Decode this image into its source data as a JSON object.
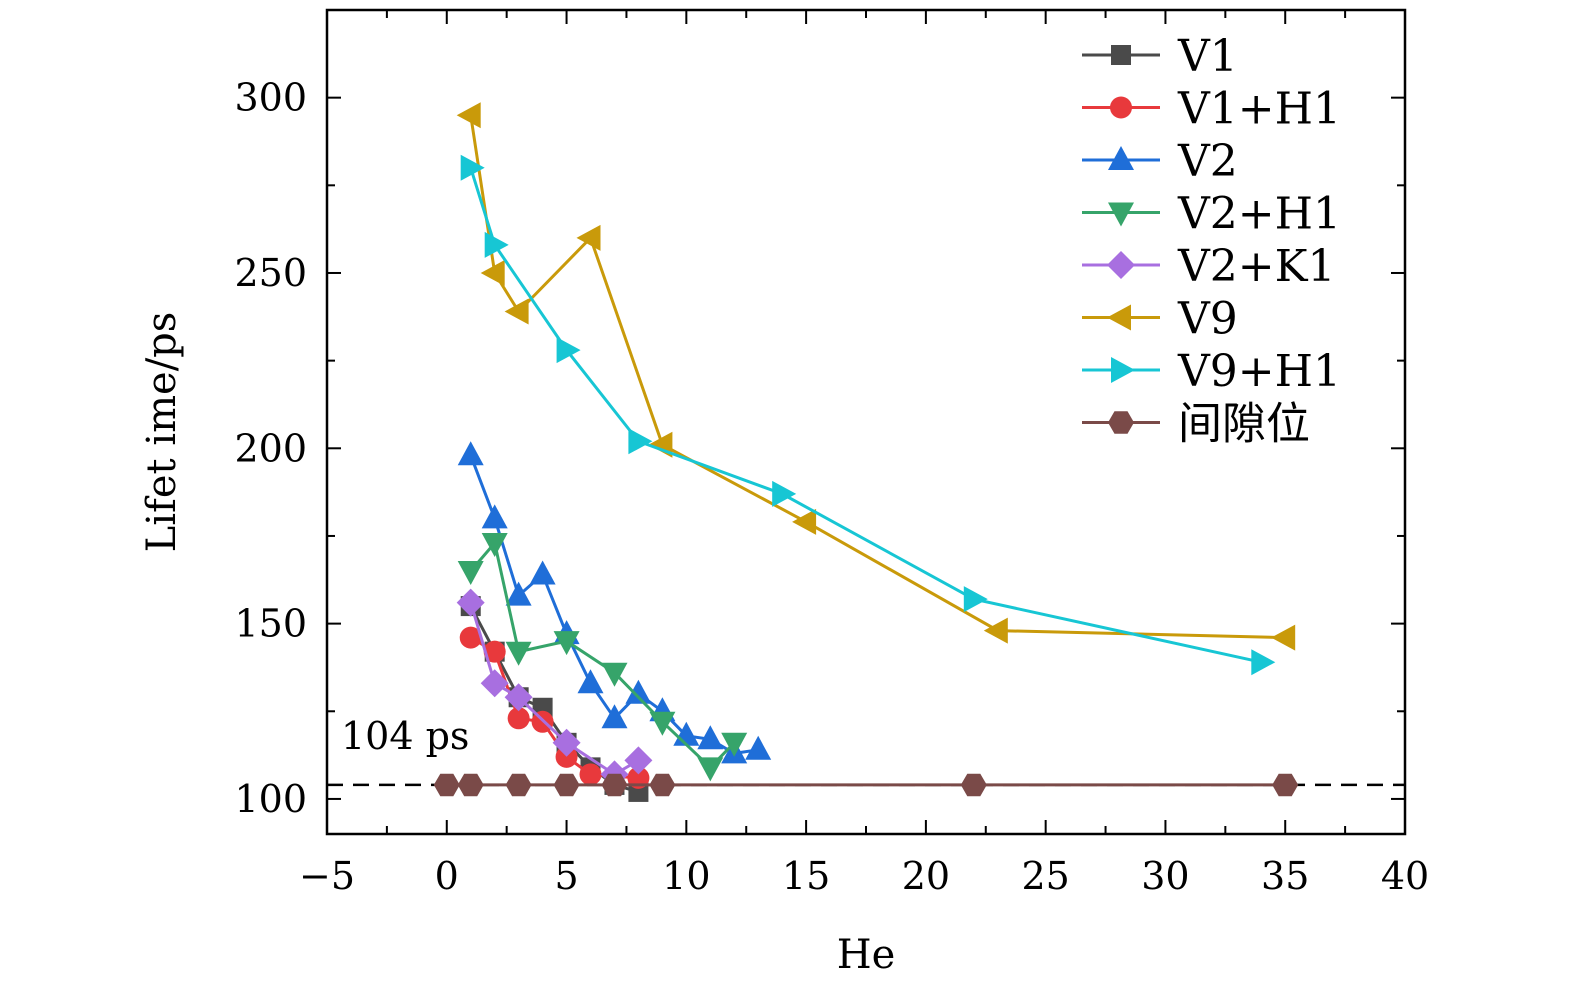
{
  "chart_data": {
    "type": "line",
    "xlabel": "He",
    "ylabel": "Lifet ime/ps",
    "xlim": [
      -5,
      40
    ],
    "ylim": [
      90,
      325
    ],
    "xticks": [
      -5,
      0,
      5,
      10,
      15,
      20,
      25,
      30,
      35,
      40
    ],
    "xtick_labels": [
      "−5",
      "0",
      "5",
      "10",
      "15",
      "20",
      "25",
      "30",
      "35",
      "40"
    ],
    "yticks": [
      100,
      150,
      200,
      250,
      300
    ],
    "ytick_labels": [
      "100",
      "150",
      "200",
      "250",
      "300"
    ],
    "grid": false,
    "legend_position": "top-right",
    "reference_line": {
      "y": 104,
      "style": "dashed",
      "label": "104 ps"
    },
    "series": [
      {
        "name": "V1",
        "color": "#4a4a4a",
        "marker": "square",
        "x": [
          1,
          2,
          3,
          4,
          5,
          6,
          7,
          8
        ],
        "y": [
          155,
          142,
          129,
          126,
          116,
          109,
          104,
          102
        ]
      },
      {
        "name": "V1+H1",
        "color": "#e8393c",
        "marker": "circle",
        "x": [
          1,
          2,
          3,
          4,
          5,
          6,
          8
        ],
        "y": [
          146,
          142,
          123,
          122,
          112,
          107,
          106
        ]
      },
      {
        "name": "V2",
        "color": "#1f6ed8",
        "marker": "triangle-up",
        "x": [
          1,
          2,
          3,
          4,
          5,
          6,
          7,
          8,
          9,
          10,
          11,
          12,
          13
        ],
        "y": [
          198,
          180,
          158,
          164,
          147,
          133,
          123,
          130,
          125,
          118,
          117,
          113,
          114
        ]
      },
      {
        "name": "V2+H1",
        "color": "#36a46a",
        "marker": "triangle-down",
        "x": [
          1,
          2,
          3,
          5,
          7,
          9,
          11,
          12
        ],
        "y": [
          165,
          173,
          142,
          145,
          136,
          122,
          109,
          116
        ]
      },
      {
        "name": "V2+K1",
        "color": "#a86fe0",
        "marker": "diamond",
        "x": [
          1,
          2,
          3,
          5,
          7,
          8
        ],
        "y": [
          156,
          133,
          129,
          116,
          107,
          111
        ]
      },
      {
        "name": "V9",
        "color": "#c99a0a",
        "marker": "triangle-left",
        "x": [
          1,
          2,
          3,
          6,
          9,
          15,
          23,
          35
        ],
        "y": [
          295,
          250,
          239,
          260,
          201,
          179,
          148,
          146
        ]
      },
      {
        "name": "V9+H1",
        "color": "#17c6d4",
        "marker": "triangle-right",
        "x": [
          1,
          2,
          5,
          8,
          14,
          22,
          34
        ],
        "y": [
          280,
          258,
          228,
          202,
          187,
          157,
          139
        ]
      },
      {
        "name": "间隙位",
        "color": "#7a4a48",
        "marker": "hexagon",
        "x": [
          0,
          1,
          3,
          5,
          7,
          9,
          22,
          35
        ],
        "y": [
          104,
          104,
          104,
          104,
          104,
          104,
          104,
          104
        ]
      }
    ]
  }
}
